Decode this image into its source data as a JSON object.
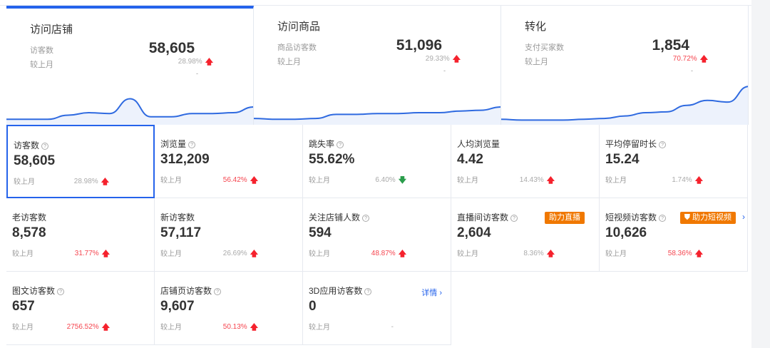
{
  "overview": [
    {
      "title": "访问店铺",
      "metric": "访客数",
      "value": "58,605",
      "compare": "较上月",
      "change": "28.98%",
      "trend": "up",
      "change_color": "#aaaaaa",
      "dash": "-",
      "sparkline": [
        5,
        5,
        5,
        10,
        13,
        12,
        30,
        8,
        8,
        12,
        12,
        13,
        20
      ],
      "active": true
    },
    {
      "title": "访问商品",
      "metric": "商品访客数",
      "value": "51,096",
      "compare": "较上月",
      "change": "29.33%",
      "trend": "up",
      "change_color": "#aaaaaa",
      "dash": "-",
      "sparkline": [
        6,
        5,
        5,
        6,
        11,
        11,
        12,
        12,
        13,
        13,
        15,
        16,
        20
      ],
      "active": false
    },
    {
      "title": "转化",
      "metric": "支付买家数",
      "value": "1,854",
      "compare": "较上月",
      "change": "70.72%",
      "trend": "up",
      "change_color": "#f5454f",
      "dash": "-",
      "sparkline": [
        5,
        4,
        4,
        4,
        5,
        6,
        9,
        13,
        14,
        22,
        28,
        26,
        45
      ],
      "active": false
    }
  ],
  "metrics": [
    {
      "name": "访客数",
      "help": true,
      "value": "58,605",
      "compare": "较上月",
      "change": "28.98%",
      "trend": "up",
      "red": false,
      "selected": true
    },
    {
      "name": "浏览量",
      "help": true,
      "value": "312,209",
      "compare": "较上月",
      "change": "56.42%",
      "trend": "up",
      "red": true
    },
    {
      "name": "跳失率",
      "help": true,
      "value": "55.62%",
      "compare": "较上月",
      "change": "6.40%",
      "trend": "down",
      "red": false
    },
    {
      "name": "人均浏览量",
      "help": false,
      "value": "4.42",
      "compare": "较上月",
      "change": "14.43%",
      "trend": "up",
      "red": false
    },
    {
      "name": "平均停留时长",
      "help": true,
      "value": "15.24",
      "compare": "较上月",
      "change": "1.74%",
      "trend": "up",
      "red": false
    },
    {
      "name": "老访客数",
      "help": false,
      "value": "8,578",
      "compare": "较上月",
      "change": "31.77%",
      "trend": "up",
      "red": true
    },
    {
      "name": "新访客数",
      "help": false,
      "value": "57,117",
      "compare": "较上月",
      "change": "26.69%",
      "trend": "up",
      "red": false
    },
    {
      "name": "关注店铺人数",
      "help": true,
      "value": "594",
      "compare": "较上月",
      "change": "48.87%",
      "trend": "up",
      "red": true
    },
    {
      "name": "直播间访客数",
      "help": true,
      "value": "2,604",
      "compare": "较上月",
      "change": "8.36%",
      "trend": "up",
      "red": false,
      "badge": "助力直播"
    },
    {
      "name": "短视频访客数",
      "help": true,
      "value": "10,626",
      "compare": "较上月",
      "change": "58.36%",
      "trend": "up",
      "red": true,
      "badge": "助力短视频",
      "badge_icon": "shield-icon"
    },
    {
      "name": "图文访客数",
      "help": true,
      "value": "657",
      "compare": "较上月",
      "change": "2756.52%",
      "trend": "up",
      "red": true
    },
    {
      "name": "店铺页访客数",
      "help": true,
      "value": "9,607",
      "compare": "较上月",
      "change": "50.13%",
      "trend": "up",
      "red": true
    },
    {
      "name": "3D应用访客数",
      "help": true,
      "value": "0",
      "compare": "较上月",
      "change": "-",
      "trend": "none",
      "red": false,
      "link": "详情 ›"
    }
  ],
  "colors": {
    "accent": "#2563eb",
    "up": "#f5222d",
    "down": "#2a9d4b",
    "badge": "#f07800"
  }
}
